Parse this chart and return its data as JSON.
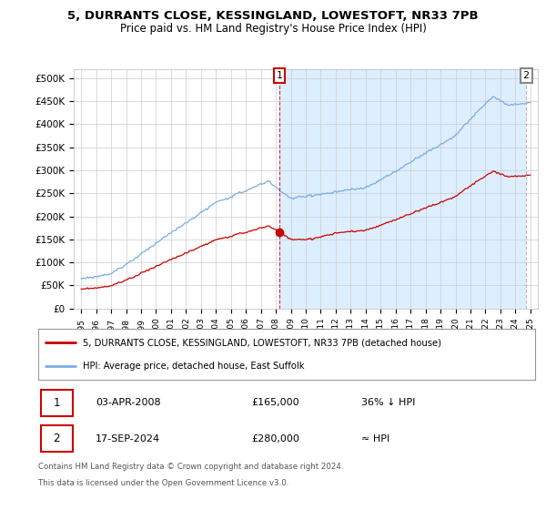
{
  "title1": "5, DURRANTS CLOSE, KESSINGLAND, LOWESTOFT, NR33 7PB",
  "title2": "Price paid vs. HM Land Registry's House Price Index (HPI)",
  "ylabel_ticks": [
    "£0",
    "£50K",
    "£100K",
    "£150K",
    "£200K",
    "£250K",
    "£300K",
    "£350K",
    "£400K",
    "£450K",
    "£500K"
  ],
  "ytick_vals": [
    0,
    50000,
    100000,
    150000,
    200000,
    250000,
    300000,
    350000,
    400000,
    450000,
    500000
  ],
  "ylim": [
    0,
    520000
  ],
  "xlim_start": 1994.5,
  "xlim_end": 2025.5,
  "hpi_color": "#7aade0",
  "price_color": "#cc0000",
  "shade_color": "#ddeeff",
  "marker1_date": 2008.25,
  "marker1_price": 165000,
  "marker2_date": 2024.72,
  "marker2_price": 280000,
  "legend_line1": "5, DURRANTS CLOSE, KESSINGLAND, LOWESTOFT, NR33 7PB (detached house)",
  "legend_line2": "HPI: Average price, detached house, East Suffolk",
  "footer1": "Contains HM Land Registry data © Crown copyright and database right 2024.",
  "footer2": "This data is licensed under the Open Government Licence v3.0.",
  "background_color": "#ffffff",
  "grid_color": "#cccccc"
}
